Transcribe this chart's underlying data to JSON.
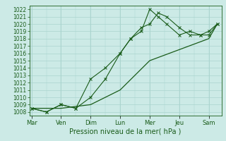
{
  "bg_color": "#cceae6",
  "grid_color": "#aad4ce",
  "line_color": "#1a5c1a",
  "ylabel_fontsize": 5.5,
  "xlabel_label": "Pression niveau de la mer( hPa )",
  "xlabel_fontsize": 7,
  "ylim": [
    1007.5,
    1022.5
  ],
  "yticks": [
    1008,
    1009,
    1010,
    1011,
    1012,
    1013,
    1014,
    1015,
    1016,
    1017,
    1018,
    1019,
    1020,
    1021,
    1022
  ],
  "day_labels": [
    "Mar",
    "Ven",
    "Dim",
    "Lun",
    "Mer",
    "Jeu",
    "Sam"
  ],
  "day_positions": [
    0,
    14,
    28,
    42,
    56,
    70,
    84
  ],
  "xlim": [
    -1,
    90
  ],
  "line1_x": [
    0,
    7,
    14,
    21,
    28,
    35,
    42,
    47,
    52,
    56,
    60,
    64,
    70,
    75,
    80,
    84,
    88
  ],
  "line1_y": [
    1008.5,
    1008.0,
    1009.0,
    1008.5,
    1012.5,
    1014.0,
    1016.0,
    1018.0,
    1019.0,
    1022.0,
    1021.0,
    1020.0,
    1018.5,
    1019.0,
    1018.5,
    1018.5,
    1020.0
  ],
  "line2_x": [
    0,
    7,
    14,
    21,
    28,
    35,
    42,
    47,
    52,
    56,
    60,
    64,
    70,
    75,
    80,
    84,
    88
  ],
  "line2_y": [
    1008.5,
    1008.0,
    1009.0,
    1008.5,
    1010.0,
    1012.5,
    1016.0,
    1018.0,
    1019.5,
    1020.0,
    1021.5,
    1021.0,
    1019.5,
    1018.5,
    1018.5,
    1019.0,
    1020.0
  ],
  "line3_x": [
    0,
    14,
    28,
    42,
    56,
    70,
    84,
    88
  ],
  "line3_y": [
    1008.5,
    1008.5,
    1009.0,
    1011.0,
    1015.0,
    1016.5,
    1018.0,
    1020.0
  ]
}
